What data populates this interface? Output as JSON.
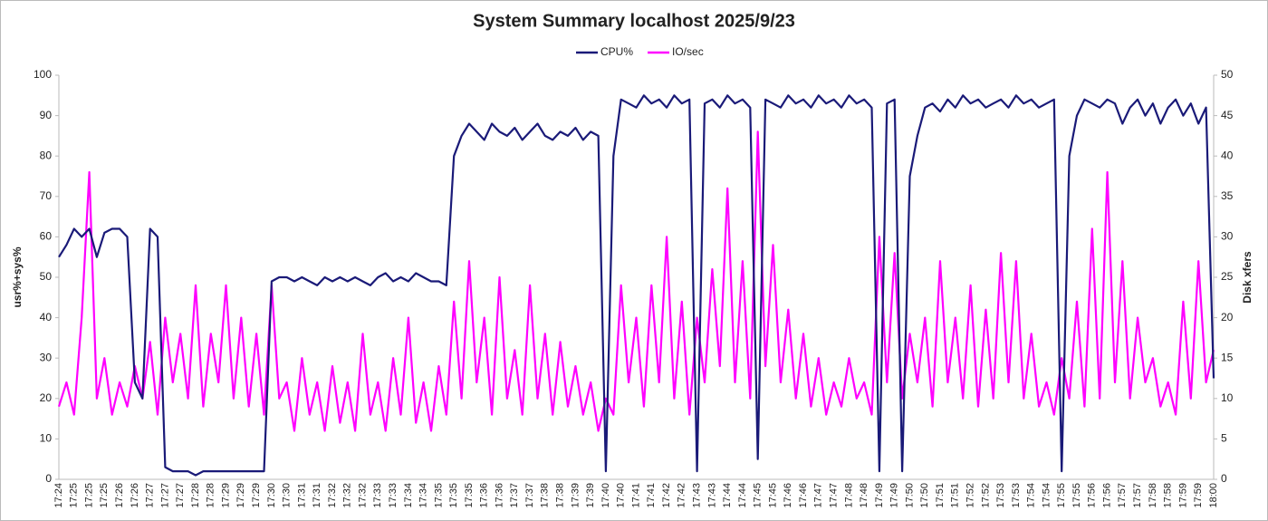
{
  "chart_data": {
    "type": "line",
    "title": "System Summary localhost  2025/9/23",
    "y_label": "usr%+sys%",
    "y2_label": "Disk xfers",
    "legend": "top",
    "grid": false,
    "categories": [
      "17:24",
      null,
      "17:25",
      null,
      "17:25",
      null,
      "17:25",
      null,
      "17:26",
      null,
      "17:26",
      null,
      "17:27",
      null,
      "17:27",
      null,
      "17:27",
      null,
      "17:28",
      null,
      "17:28",
      null,
      "17:29",
      null,
      "17:29",
      null,
      "17:29",
      null,
      "17:30",
      null,
      "17:30",
      null,
      "17:31",
      null,
      "17:31",
      null,
      "17:32",
      null,
      "17:32",
      null,
      "17:32",
      null,
      "17:33",
      null,
      "17:33",
      null,
      "17:34",
      null,
      "17:34",
      null,
      "17:35",
      null,
      "17:35",
      null,
      "17:35",
      null,
      "17:36",
      null,
      "17:36",
      null,
      "17:37",
      null,
      "17:37",
      null,
      "17:38",
      null,
      "17:38",
      null,
      "17:39",
      null,
      "17:39",
      null,
      "17:40",
      null,
      "17:40",
      null,
      "17:41",
      null,
      "17:41",
      null,
      "17:42",
      null,
      "17:42",
      null,
      "17:43",
      null,
      "17:43",
      null,
      "17:44",
      null,
      "17:44",
      null,
      "17:45",
      null,
      "17:45",
      null,
      "17:46",
      null,
      "17:46",
      null,
      "17:47",
      null,
      "17:47",
      null,
      "17:48",
      null,
      "17:48",
      null,
      "17:49",
      null,
      "17:49",
      null,
      "17:50",
      null,
      "17:50",
      null,
      "17:51",
      null,
      "17:51",
      null,
      "17:52",
      null,
      "17:52",
      null,
      "17:53",
      null,
      "17:53",
      null,
      "17:54",
      null,
      "17:54",
      null,
      "17:55",
      null,
      "17:55",
      null,
      "17:56",
      null,
      "17:56",
      null,
      "17:57",
      null,
      "17:57",
      null,
      "17:58",
      null,
      "17:58",
      null,
      "17:59",
      null,
      "17:59",
      null,
      "18:00"
    ],
    "series": [
      {
        "name": "IO/sec",
        "color": "#ff00ff",
        "axis": "y2",
        "values": [
          9,
          12,
          8,
          20,
          38,
          10,
          15,
          8,
          12,
          9,
          14,
          10,
          17,
          8,
          20,
          12,
          18,
          10,
          24,
          9,
          18,
          12,
          24,
          10,
          20,
          9,
          18,
          8,
          24,
          10,
          12,
          6,
          15,
          8,
          12,
          6,
          14,
          7,
          12,
          6,
          18,
          8,
          12,
          6,
          15,
          8,
          20,
          7,
          12,
          6,
          14,
          8,
          22,
          10,
          27,
          12,
          20,
          8,
          25,
          10,
          16,
          8,
          24,
          10,
          18,
          8,
          17,
          9,
          14,
          8,
          12,
          6,
          10,
          8,
          24,
          12,
          20,
          9,
          24,
          12,
          30,
          10,
          22,
          8,
          20,
          12,
          26,
          14,
          36,
          12,
          27,
          10,
          43,
          14,
          29,
          12,
          21,
          10,
          18,
          9,
          15,
          8,
          12,
          9,
          15,
          10,
          12,
          8,
          30,
          12,
          28,
          10,
          18,
          12,
          20,
          9,
          27,
          12,
          20,
          10,
          24,
          9,
          21,
          10,
          28,
          12,
          27,
          10,
          18,
          9,
          12,
          8,
          15,
          10,
          22,
          9,
          31,
          10,
          38,
          12,
          27,
          10,
          20,
          12,
          15,
          9,
          12,
          8,
          22,
          10,
          27,
          12,
          16
        ]
      },
      {
        "name": "CPU%",
        "color": "#1a1a78",
        "values": [
          55,
          58,
          62,
          60,
          62,
          55,
          61,
          62,
          62,
          60,
          24,
          20,
          62,
          60,
          3,
          2,
          2,
          2,
          1,
          2,
          2,
          2,
          2,
          2,
          2,
          2,
          2,
          2,
          49,
          50,
          50,
          49,
          50,
          49,
          48,
          50,
          49,
          50,
          49,
          50,
          49,
          48,
          50,
          51,
          49,
          50,
          49,
          51,
          50,
          49,
          49,
          48,
          80,
          85,
          88,
          86,
          84,
          88,
          86,
          85,
          87,
          84,
          86,
          88,
          85,
          84,
          86,
          85,
          87,
          84,
          86,
          85,
          2,
          80,
          94,
          93,
          92,
          95,
          93,
          94,
          92,
          95,
          93,
          94,
          2,
          93,
          94,
          92,
          95,
          93,
          94,
          92,
          5,
          94,
          93,
          92,
          95,
          93,
          94,
          92,
          95,
          93,
          94,
          92,
          95,
          93,
          94,
          92,
          2,
          93,
          94,
          2,
          75,
          85,
          92,
          93,
          91,
          94,
          92,
          95,
          93,
          94,
          92,
          93,
          94,
          92,
          95,
          93,
          94,
          92,
          93,
          94,
          2,
          80,
          90,
          94,
          93,
          92,
          94,
          93,
          88,
          92,
          94,
          90,
          93,
          88,
          92,
          94,
          90,
          93,
          88,
          92,
          25
        ]
      }
    ],
    "legend_order": [
      1,
      0
    ],
    "ylim": [
      0,
      100
    ],
    "yticks": [
      0,
      10,
      20,
      30,
      40,
      50,
      60,
      70,
      80,
      90,
      100
    ],
    "y2lim": [
      0,
      50
    ],
    "y2ticks": [
      0,
      5,
      10,
      15,
      20,
      25,
      30,
      35,
      40,
      45,
      50
    ]
  }
}
